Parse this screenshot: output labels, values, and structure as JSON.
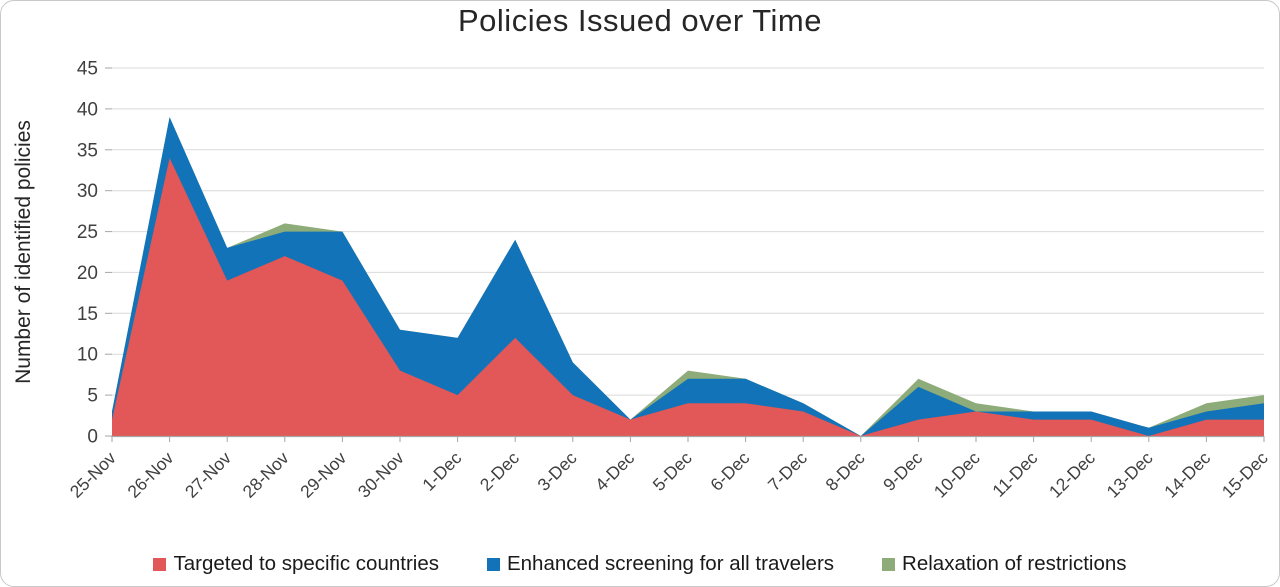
{
  "title": "Policies Issued over Time",
  "y_axis": {
    "label": "Number of identified policies",
    "ticks": [
      0,
      5,
      10,
      15,
      20,
      25,
      30,
      35,
      40,
      45
    ],
    "max": 45
  },
  "x_axis": {
    "labels": [
      "25-Nov",
      "26-Nov",
      "27-Nov",
      "28-Nov",
      "29-Nov",
      "30-Nov",
      "1-Dec",
      "2-Dec",
      "3-Dec",
      "4-Dec",
      "5-Dec",
      "6-Dec",
      "7-Dec",
      "8-Dec",
      "9-Dec",
      "10-Dec",
      "11-Dec",
      "12-Dec",
      "13-Dec",
      "14-Dec",
      "15-Dec"
    ]
  },
  "legend": [
    {
      "label": "Targeted to specific countries",
      "color": "#E25757"
    },
    {
      "label": "Enhanced screening for all travelers",
      "color": "#1273B8"
    },
    {
      "label": "Relaxation of restrictions",
      "color": "#8DAC79"
    }
  ],
  "chart_data": {
    "type": "area",
    "stacked": true,
    "title": "Policies Issued over Time",
    "xlabel": "",
    "ylabel": "Number of identified policies",
    "ylim": [
      0,
      45
    ],
    "grid": true,
    "legend_position": "bottom",
    "x": [
      "25-Nov",
      "26-Nov",
      "27-Nov",
      "28-Nov",
      "29-Nov",
      "30-Nov",
      "1-Dec",
      "2-Dec",
      "3-Dec",
      "4-Dec",
      "5-Dec",
      "6-Dec",
      "7-Dec",
      "8-Dec",
      "9-Dec",
      "10-Dec",
      "11-Dec",
      "12-Dec",
      "13-Dec",
      "14-Dec",
      "15-Dec"
    ],
    "series": [
      {
        "name": "Targeted to specific countries",
        "color": "#E25757",
        "values": [
          2,
          34,
          19,
          22,
          19,
          8,
          5,
          12,
          5,
          2,
          4,
          4,
          3,
          0,
          2,
          3,
          2,
          2,
          0,
          2,
          2
        ]
      },
      {
        "name": "Enhanced screening for all travelers",
        "color": "#1273B8",
        "values": [
          1,
          5,
          4,
          3,
          6,
          5,
          7,
          12,
          4,
          0,
          3,
          3,
          1,
          0,
          4,
          0,
          1,
          1,
          1,
          1,
          2
        ]
      },
      {
        "name": "Relaxation of restrictions",
        "color": "#8DAC79",
        "values": [
          0,
          0,
          0,
          1,
          0,
          0,
          0,
          0,
          0,
          0,
          1,
          0,
          0,
          0,
          1,
          1,
          0,
          0,
          0,
          1,
          1
        ]
      }
    ],
    "totals": [
      3,
      39,
      23,
      26,
      25,
      13,
      12,
      24,
      9,
      2,
      8,
      7,
      4,
      0,
      7,
      4,
      3,
      3,
      1,
      4,
      5
    ]
  }
}
